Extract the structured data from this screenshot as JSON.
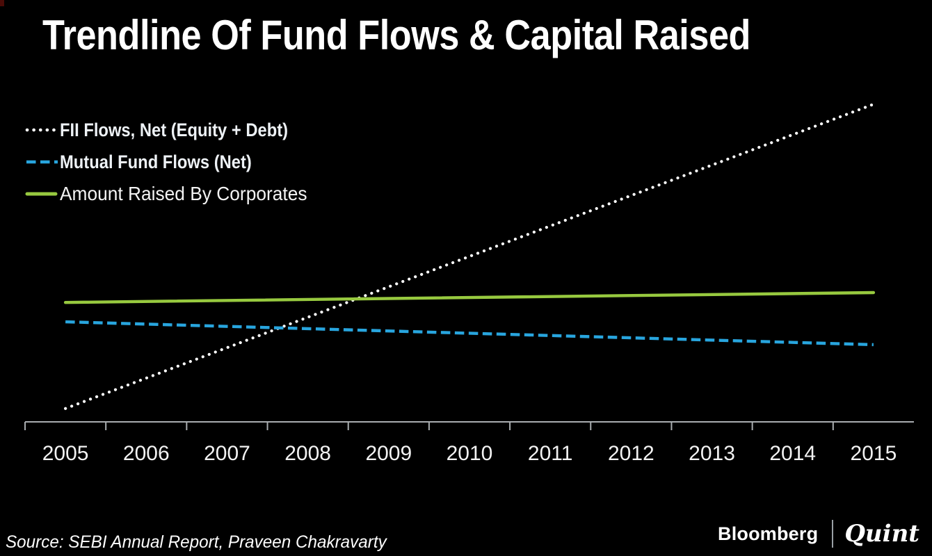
{
  "title": "Trendline Of Fund Flows & Capital Raised",
  "legend": {
    "position": "top-left",
    "items": [
      {
        "label": "FII Flows, Net (Equity + Debt)",
        "style": "dotted",
        "color": "#ffffff"
      },
      {
        "label": "Mutual Fund Flows (Net)",
        "style": "dashed",
        "color": "#28a5de"
      },
      {
        "label": "Amount Raised By Corporates",
        "style": "solid",
        "color": "#97c93f"
      }
    ]
  },
  "chart_data": {
    "type": "line",
    "title": "Trendline Of Fund Flows & Capital Raised",
    "categories": [
      "2005",
      "2006",
      "2007",
      "2008",
      "2009",
      "2010",
      "2011",
      "2012",
      "2013",
      "2014",
      "2015"
    ],
    "xlabel": "",
    "ylabel": "",
    "grid": false,
    "y_axis_visible": false,
    "note": "Straight trendlines; no numeric y-axis shown. Values given as fraction of plot height above the x-axis at 2005 (start) and 2015 (end).",
    "series": [
      {
        "name": "FII Flows, Net (Equity + Debt)",
        "line_style": "dotted",
        "color": "#ffffff",
        "trend": "rising steeply",
        "start_frac": 0.042,
        "end_frac": 1.0
      },
      {
        "name": "Mutual Fund Flows (Net)",
        "line_style": "dashed",
        "color": "#28a5de",
        "trend": "slightly falling",
        "start_frac": 0.315,
        "end_frac": 0.243
      },
      {
        "name": "Amount Raised By Corporates",
        "line_style": "solid",
        "color": "#97c93f",
        "trend": "slightly rising",
        "start_frac": 0.376,
        "end_frac": 0.407
      }
    ],
    "crossings": [
      "FII dotted line crosses Mutual Fund dashed line near 2008",
      "FII dotted line crosses Corporates solid line near 2009"
    ]
  },
  "axis": {
    "color": "#a9adb0",
    "label_color": "#f2f2f2"
  },
  "source": "Source: SEBI Annual Report, Praveen Chakravarty",
  "logo": {
    "bloomberg": "Bloomberg",
    "separator": "|",
    "quint": "Quint"
  }
}
